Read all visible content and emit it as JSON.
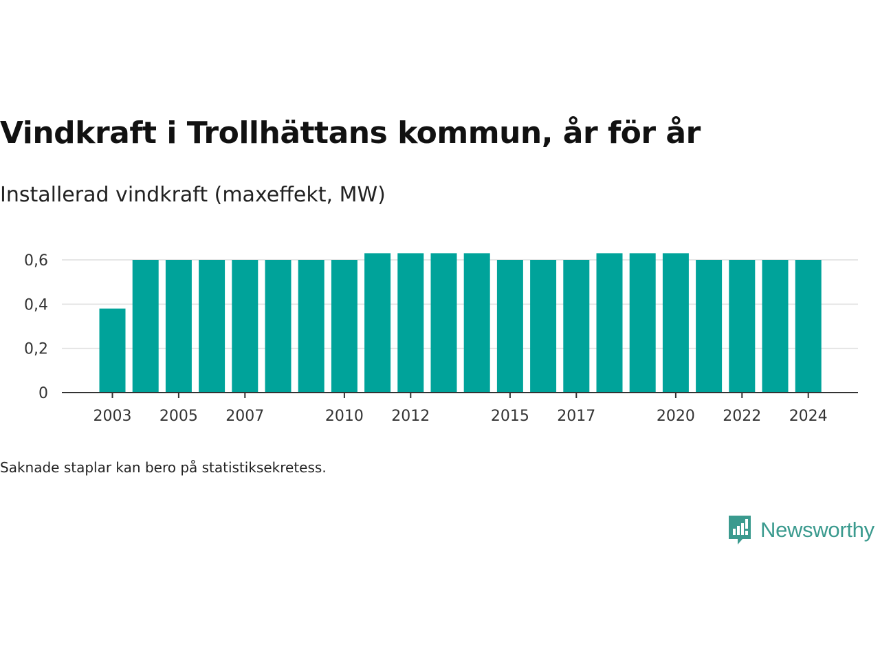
{
  "title": "Vindkraft i Trollhättans kommun, år för år",
  "subtitle": "Installerad vindkraft (maxeffekt, MW)",
  "note": "Saknade staplar kan bero på statistiksekretess.",
  "brand": {
    "name": "Newsworthy",
    "icon": "newsworthy-logo-icon",
    "color": "#3a9a8e"
  },
  "chart_data": {
    "type": "bar",
    "title": "Vindkraft i Trollhättans kommun, år för år",
    "ylabel": "Installerad vindkraft (maxeffekt, MW)",
    "xlabel": "",
    "categories": [
      2003,
      2004,
      2005,
      2006,
      2007,
      2008,
      2009,
      2010,
      2011,
      2012,
      2013,
      2014,
      2015,
      2016,
      2017,
      2018,
      2019,
      2020,
      2021,
      2022,
      2023,
      2024
    ],
    "values": [
      0.38,
      0.6,
      0.6,
      0.6,
      0.6,
      0.6,
      0.6,
      0.6,
      0.63,
      0.63,
      0.63,
      0.63,
      0.6,
      0.6,
      0.6,
      0.63,
      0.63,
      0.63,
      0.6,
      0.6,
      0.6,
      0.6
    ],
    "x_tick_labels": [
      "2003",
      "2005",
      "2007",
      "2010",
      "2012",
      "2015",
      "2017",
      "2020",
      "2022",
      "2024"
    ],
    "y_ticks": [
      0,
      0.2,
      0.4,
      0.6
    ],
    "y_tick_labels": [
      "0",
      "0,2",
      "0,4",
      "0,6"
    ],
    "ylim": [
      0,
      0.63
    ],
    "grid": true,
    "bar_color": "#00a39a",
    "grid_color": "#dddddd",
    "axis_color": "#333333"
  }
}
